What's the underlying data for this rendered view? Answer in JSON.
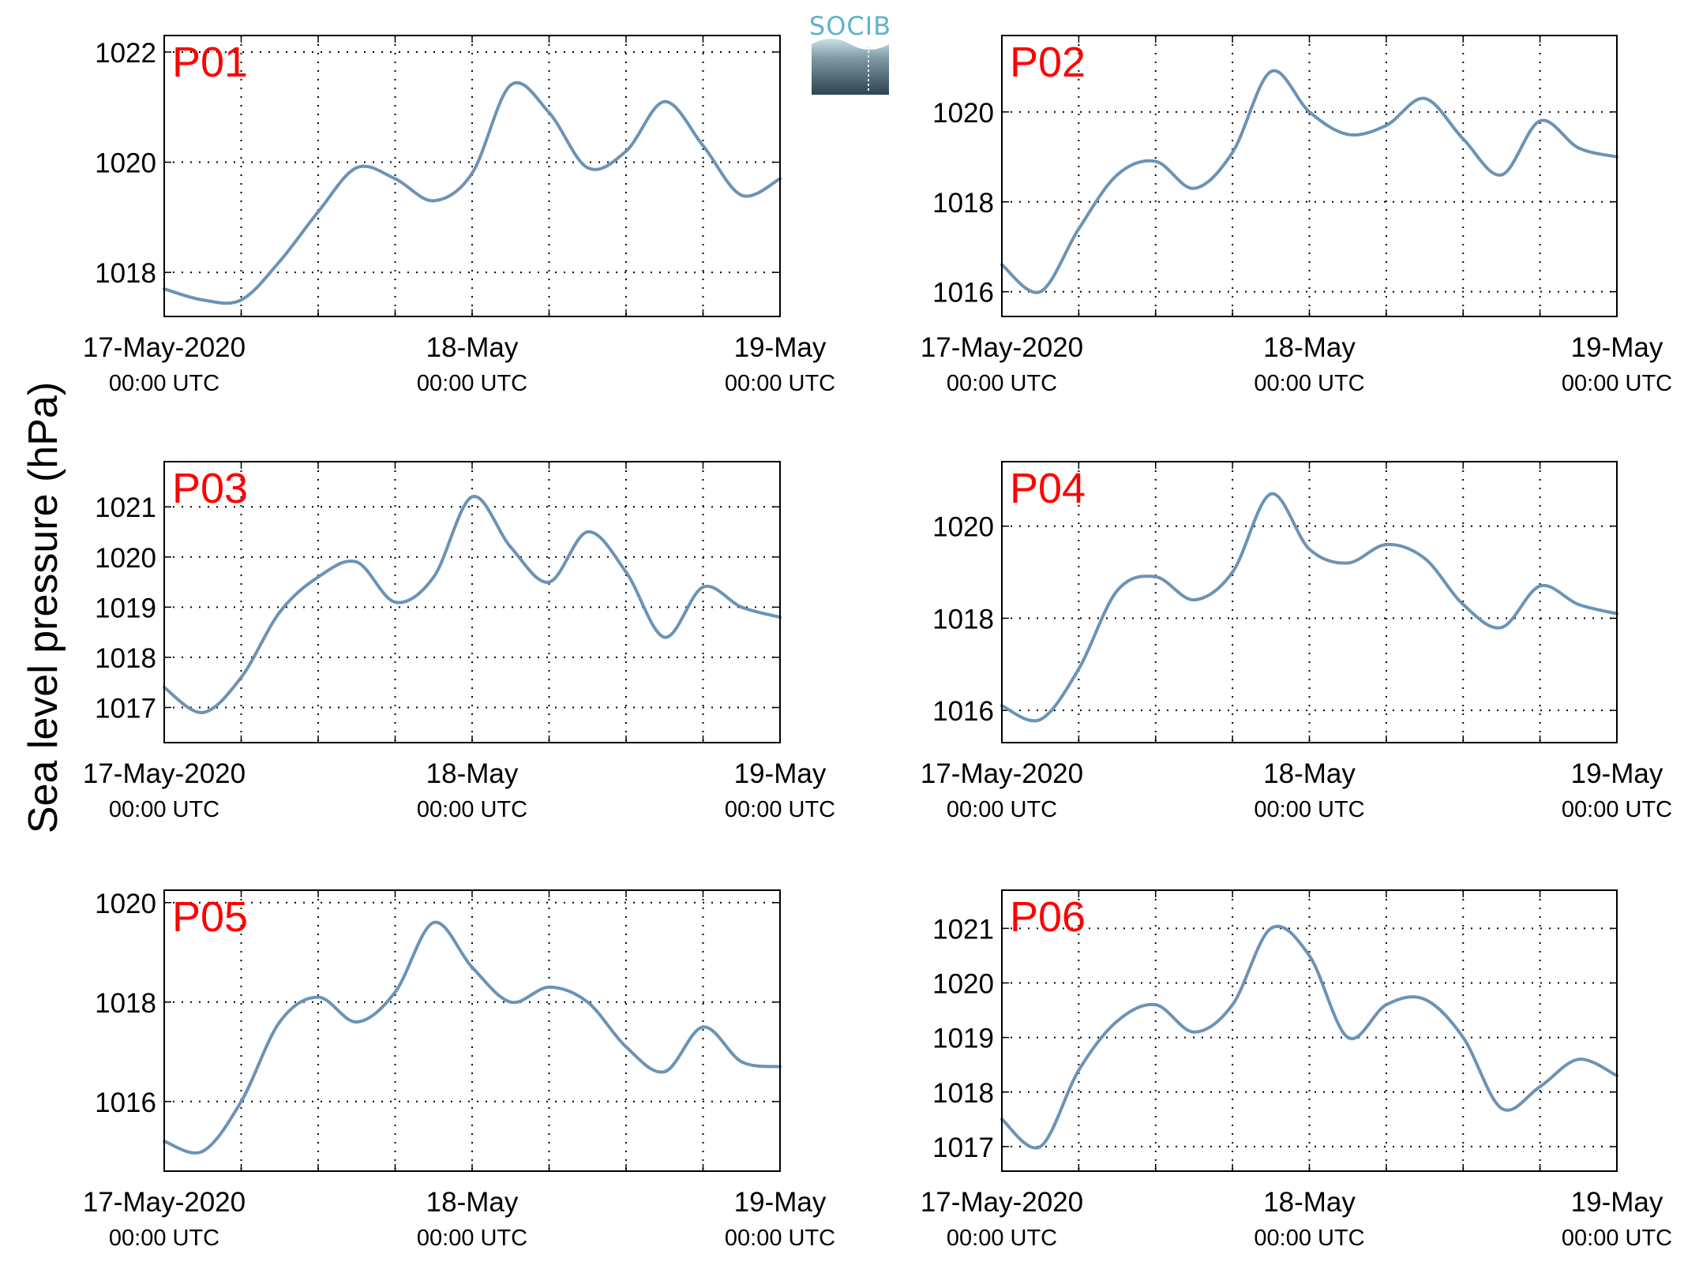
{
  "figure": {
    "ylabel": "Sea level pressure (hPa)",
    "logo_text": "SOCIB",
    "colors": {
      "line": "#6b93b5",
      "label": "#ff0000",
      "axis": "#000000",
      "grid": "#000000"
    }
  },
  "chart_data": [
    {
      "type": "line",
      "panel_label": "P01",
      "x_ticks": [
        {
          "line1": "17-May-2020",
          "line2": "00:00 UTC"
        },
        {
          "line1": "18-May",
          "line2": "00:00 UTC"
        },
        {
          "line1": "19-May",
          "line2": "00:00 UTC"
        }
      ],
      "x_hours": [
        0,
        3,
        6,
        9,
        12,
        15,
        18,
        21,
        24,
        27,
        30,
        33,
        36,
        39,
        42,
        45,
        48
      ],
      "xlim_hours": [
        0,
        48
      ],
      "ylim": [
        1017.2,
        1022.3
      ],
      "yticks": [
        1018,
        1020,
        1022
      ],
      "grid": true,
      "series": [
        {
          "values": [
            1017.7,
            1017.5,
            1017.5,
            1018.2,
            1019.1,
            1019.9,
            1019.7,
            1019.3,
            1019.8,
            1021.4,
            1020.9,
            1019.9,
            1020.2,
            1021.1,
            1020.3,
            1019.4,
            1019.7
          ]
        }
      ]
    },
    {
      "type": "line",
      "panel_label": "P02",
      "x_ticks": [
        {
          "line1": "17-May-2020",
          "line2": "00:00 UTC"
        },
        {
          "line1": "18-May",
          "line2": "00:00 UTC"
        },
        {
          "line1": "19-May",
          "line2": "00:00 UTC"
        }
      ],
      "x_hours": [
        0,
        3,
        6,
        9,
        12,
        15,
        18,
        21,
        24,
        27,
        30,
        33,
        36,
        39,
        42,
        45,
        48
      ],
      "xlim_hours": [
        0,
        48
      ],
      "ylim": [
        1015.45,
        1021.7
      ],
      "yticks": [
        1016,
        1018,
        1020
      ],
      "grid": true,
      "series": [
        {
          "values": [
            1016.6,
            1016.0,
            1017.4,
            1018.6,
            1018.9,
            1018.3,
            1019.1,
            1020.9,
            1020.0,
            1019.5,
            1019.7,
            1020.3,
            1019.4,
            1018.6,
            1019.8,
            1019.2,
            1019.0
          ]
        }
      ]
    },
    {
      "type": "line",
      "panel_label": "P03",
      "x_ticks": [
        {
          "line1": "17-May-2020",
          "line2": "00:00 UTC"
        },
        {
          "line1": "18-May",
          "line2": "00:00 UTC"
        },
        {
          "line1": "19-May",
          "line2": "00:00 UTC"
        }
      ],
      "x_hours": [
        0,
        3,
        6,
        9,
        12,
        15,
        18,
        21,
        24,
        27,
        30,
        33,
        36,
        39,
        42,
        45,
        48
      ],
      "xlim_hours": [
        0,
        48
      ],
      "ylim": [
        1016.3,
        1021.9
      ],
      "yticks": [
        1017,
        1018,
        1019,
        1020,
        1021
      ],
      "grid": true,
      "series": [
        {
          "values": [
            1017.4,
            1016.9,
            1017.6,
            1018.9,
            1019.6,
            1019.9,
            1019.1,
            1019.6,
            1021.2,
            1020.2,
            1019.5,
            1020.5,
            1019.7,
            1018.4,
            1019.4,
            1019.0,
            1018.8
          ]
        }
      ]
    },
    {
      "type": "line",
      "panel_label": "P04",
      "x_ticks": [
        {
          "line1": "17-May-2020",
          "line2": "00:00 UTC"
        },
        {
          "line1": "18-May",
          "line2": "00:00 UTC"
        },
        {
          "line1": "19-May",
          "line2": "00:00 UTC"
        }
      ],
      "x_hours": [
        0,
        3,
        6,
        9,
        12,
        15,
        18,
        21,
        24,
        27,
        30,
        33,
        36,
        39,
        42,
        45,
        48
      ],
      "xlim_hours": [
        0,
        48
      ],
      "ylim": [
        1015.3,
        1021.4
      ],
      "yticks": [
        1016,
        1018,
        1020
      ],
      "grid": true,
      "series": [
        {
          "values": [
            1016.1,
            1015.8,
            1016.9,
            1018.6,
            1018.9,
            1018.4,
            1019.0,
            1020.7,
            1019.5,
            1019.2,
            1019.6,
            1019.3,
            1018.3,
            1017.8,
            1018.7,
            1018.3,
            1018.1
          ]
        }
      ]
    },
    {
      "type": "line",
      "panel_label": "P05",
      "x_ticks": [
        {
          "line1": "17-May-2020",
          "line2": "00:00 UTC"
        },
        {
          "line1": "18-May",
          "line2": "00:00 UTC"
        },
        {
          "line1": "19-May",
          "line2": "00:00 UTC"
        }
      ],
      "x_hours": [
        0,
        3,
        6,
        9,
        12,
        15,
        18,
        21,
        24,
        27,
        30,
        33,
        36,
        39,
        42,
        45,
        48
      ],
      "xlim_hours": [
        0,
        48
      ],
      "ylim": [
        1014.6,
        1020.25
      ],
      "yticks": [
        1016,
        1018,
        1020
      ],
      "grid": true,
      "series": [
        {
          "values": [
            1015.2,
            1015.0,
            1016.0,
            1017.6,
            1018.1,
            1017.6,
            1018.2,
            1019.6,
            1018.7,
            1018.0,
            1018.3,
            1018.0,
            1017.1,
            1016.6,
            1017.5,
            1016.8,
            1016.7
          ]
        }
      ]
    },
    {
      "type": "line",
      "panel_label": "P06",
      "x_ticks": [
        {
          "line1": "17-May-2020",
          "line2": "00:00 UTC"
        },
        {
          "line1": "18-May",
          "line2": "00:00 UTC"
        },
        {
          "line1": "19-May",
          "line2": "00:00 UTC"
        }
      ],
      "x_hours": [
        0,
        3,
        6,
        9,
        12,
        15,
        18,
        21,
        24,
        27,
        30,
        33,
        36,
        39,
        42,
        45,
        48
      ],
      "xlim_hours": [
        0,
        48
      ],
      "ylim": [
        1016.55,
        1021.7
      ],
      "yticks": [
        1017,
        1018,
        1019,
        1020,
        1021
      ],
      "grid": true,
      "series": [
        {
          "values": [
            1017.5,
            1017.0,
            1018.4,
            1019.3,
            1019.6,
            1019.1,
            1019.6,
            1021.0,
            1020.5,
            1019.0,
            1019.6,
            1019.7,
            1019.0,
            1017.7,
            1018.1,
            1018.6,
            1018.3
          ]
        }
      ]
    }
  ]
}
